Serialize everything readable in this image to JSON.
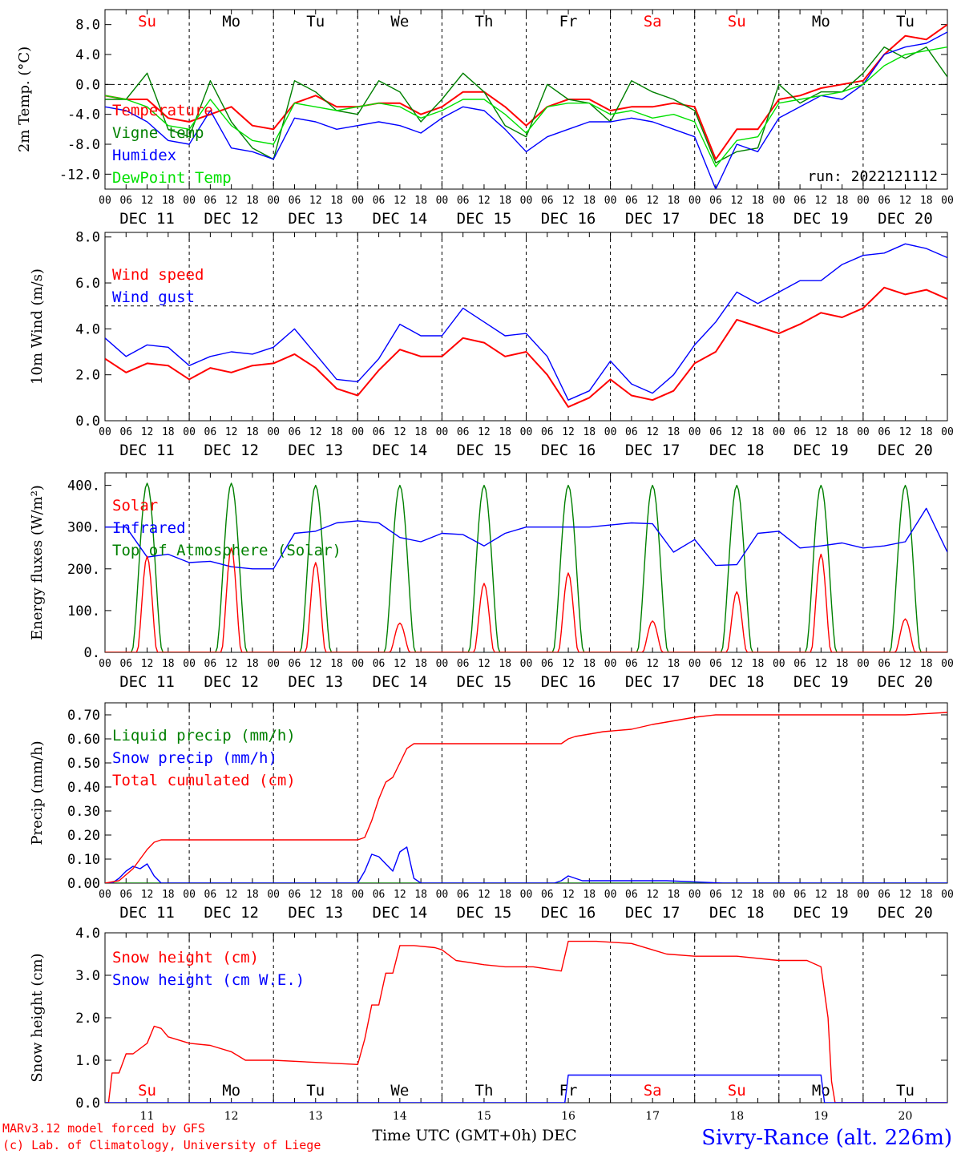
{
  "header": {
    "run": "run: 2022121112",
    "credit_model": "MARv3.12 model forced by GFS",
    "credit_lab": "(c) Lab. of Climatology, University of Liege",
    "station": "Sivry-Rance (alt. 226m)",
    "xaxis_title": "Time UTC (GMT+0h) DEC"
  },
  "axis": {
    "hour_ticks": [
      "00",
      "06",
      "12",
      "18"
    ],
    "date_labels": [
      "DEC 11",
      "DEC 12",
      "DEC 13",
      "DEC 14",
      "DEC 15",
      "DEC 16",
      "DEC 17",
      "DEC 18",
      "DEC 19",
      "DEC 20"
    ],
    "day_numbers": [
      "11",
      "12",
      "13",
      "14",
      "15",
      "16",
      "17",
      "18",
      "19",
      "20"
    ],
    "weekdays": [
      {
        "label": "Su",
        "color": "#ff0000"
      },
      {
        "label": "Mo",
        "color": "#000000"
      },
      {
        "label": "Tu",
        "color": "#000000"
      },
      {
        "label": "We",
        "color": "#000000"
      },
      {
        "label": "Th",
        "color": "#000000"
      },
      {
        "label": "Fr",
        "color": "#000000"
      },
      {
        "label": "Sa",
        "color": "#ff0000"
      },
      {
        "label": "Su",
        "color": "#ff0000"
      },
      {
        "label": "Mo",
        "color": "#000000"
      },
      {
        "label": "Tu",
        "color": "#000000"
      }
    ]
  },
  "colors": {
    "red": "#ff0000",
    "dark_green": "#008000",
    "blue": "#0000ff",
    "light_green": "#00e000"
  },
  "chart_data": [
    {
      "type": "line",
      "ylabel": "2m Temp. (°C)",
      "ylim": [
        -14,
        10
      ],
      "yticks": [
        "8.0",
        "4.0",
        "0.0",
        "-4.0",
        "-8.0",
        "-12.0"
      ],
      "ytick_values": [
        8,
        4,
        0,
        -4,
        -8,
        -12
      ],
      "ref_line": 0,
      "series": [
        {
          "name": "Temperature",
          "color": "#ff0000",
          "x": [
            0,
            6,
            12,
            18,
            24,
            30,
            36,
            42,
            48,
            54,
            60,
            66,
            72,
            78,
            84,
            90,
            96,
            102,
            108,
            114,
            120,
            126,
            132,
            138,
            144,
            150,
            156,
            162,
            168,
            174,
            180,
            186,
            192,
            198,
            204,
            210,
            216,
            222,
            228,
            234,
            240
          ],
          "values": [
            -1.5,
            -2,
            -2,
            -4.5,
            -5,
            -4,
            -3,
            -5.5,
            -6,
            -2.5,
            -1.5,
            -3,
            -3,
            -2.5,
            -2.5,
            -4,
            -3,
            -1,
            -1,
            -3,
            -5.5,
            -3,
            -2,
            -2,
            -3.5,
            -3,
            -3,
            -2.5,
            -3,
            -10,
            -6,
            -6,
            -2,
            -1.5,
            -0.5,
            0,
            0.5,
            4,
            6.5,
            6,
            8
          ]
        },
        {
          "name": "Vigne temp",
          "color": "#008000",
          "x": [
            0,
            6,
            12,
            18,
            24,
            30,
            36,
            42,
            48,
            54,
            60,
            66,
            72,
            78,
            84,
            90,
            96,
            102,
            108,
            114,
            120,
            126,
            132,
            138,
            144,
            150,
            156,
            162,
            168,
            174,
            180,
            186,
            192,
            198,
            204,
            210,
            216,
            222,
            228,
            234,
            240
          ],
          "values": [
            -2,
            -2,
            1.5,
            -6,
            -7,
            0.5,
            -5,
            -8.5,
            -10,
            0.5,
            -1,
            -3.5,
            -4,
            0.5,
            -1,
            -5,
            -2,
            1.5,
            -1,
            -5.5,
            -7,
            0,
            -2,
            -2.5,
            -5,
            0.5,
            -1,
            -2,
            -3.5,
            -10.5,
            -9,
            -8.5,
            0,
            -2.5,
            -1,
            -1,
            1.5,
            5,
            3.5,
            5,
            1
          ]
        },
        {
          "name": "Humidex",
          "color": "#0000ff",
          "x": [
            0,
            6,
            12,
            18,
            24,
            30,
            36,
            42,
            48,
            54,
            60,
            66,
            72,
            78,
            84,
            90,
            96,
            102,
            108,
            114,
            120,
            126,
            132,
            138,
            144,
            150,
            156,
            162,
            168,
            174,
            180,
            186,
            192,
            198,
            204,
            210,
            216,
            222,
            228,
            234,
            240
          ],
          "values": [
            -3,
            -3.5,
            -5,
            -7.5,
            -8,
            -3.5,
            -8.5,
            -9,
            -10,
            -4.5,
            -5,
            -6,
            -5.5,
            -5,
            -5.5,
            -6.5,
            -4.5,
            -3,
            -3.5,
            -6,
            -9,
            -7,
            -6,
            -5,
            -5,
            -4.5,
            -5,
            -6,
            -7,
            -14,
            -8,
            -9,
            -4.5,
            -3,
            -1.5,
            -2,
            0,
            4,
            5,
            5.5,
            7
          ]
        },
        {
          "name": "DewPoint Temp",
          "color": "#00e000",
          "x": [
            0,
            6,
            12,
            18,
            24,
            30,
            36,
            42,
            48,
            54,
            60,
            66,
            72,
            78,
            84,
            90,
            96,
            102,
            108,
            114,
            120,
            126,
            132,
            138,
            144,
            150,
            156,
            162,
            168,
            174,
            180,
            186,
            192,
            198,
            204,
            210,
            216,
            222,
            228,
            234,
            240
          ],
          "values": [
            -1.5,
            -2,
            -3,
            -5.5,
            -6,
            -2,
            -5.5,
            -7.5,
            -8,
            -2.5,
            -3,
            -3.5,
            -3,
            -2.5,
            -3,
            -4.5,
            -3.5,
            -2,
            -2,
            -4,
            -6.5,
            -3,
            -2.5,
            -2.5,
            -4,
            -3.5,
            -4.5,
            -4,
            -5,
            -11,
            -7.5,
            -7,
            -2.5,
            -2,
            -1.5,
            -1,
            0,
            2.5,
            4,
            4.5,
            5
          ]
        }
      ]
    },
    {
      "type": "line",
      "ylabel": "10m Wind (m/s)",
      "ylim": [
        0,
        8.2
      ],
      "yticks": [
        "8.0",
        "6.0",
        "4.0",
        "2.0",
        "0.0"
      ],
      "ytick_values": [
        8,
        6,
        4,
        2,
        0
      ],
      "ref_line": 5,
      "series": [
        {
          "name": "Wind speed",
          "color": "#ff0000",
          "x": [
            0,
            6,
            12,
            18,
            24,
            30,
            36,
            42,
            48,
            54,
            60,
            66,
            72,
            78,
            84,
            90,
            96,
            102,
            108,
            114,
            120,
            126,
            132,
            138,
            144,
            150,
            156,
            162,
            168,
            174,
            180,
            186,
            192,
            198,
            204,
            210,
            216,
            222,
            228,
            234,
            240
          ],
          "values": [
            2.7,
            2.1,
            2.5,
            2.4,
            1.8,
            2.3,
            2.1,
            2.4,
            2.5,
            2.9,
            2.3,
            1.4,
            1.1,
            2.2,
            3.1,
            2.8,
            2.8,
            3.6,
            3.4,
            2.8,
            3.0,
            2.0,
            0.6,
            1.0,
            1.8,
            1.1,
            0.9,
            1.3,
            2.5,
            3.0,
            4.4,
            4.1,
            3.8,
            4.2,
            4.7,
            4.5,
            4.9,
            5.8,
            5.5,
            5.7,
            5.3
          ]
        },
        {
          "name": "Wind gust",
          "color": "#0000ff",
          "x": [
            0,
            6,
            12,
            18,
            24,
            30,
            36,
            42,
            48,
            54,
            60,
            66,
            72,
            78,
            84,
            90,
            96,
            102,
            108,
            114,
            120,
            126,
            132,
            138,
            144,
            150,
            156,
            162,
            168,
            174,
            180,
            186,
            192,
            198,
            204,
            210,
            216,
            222,
            228,
            234,
            240
          ],
          "values": [
            3.6,
            2.8,
            3.3,
            3.2,
            2.4,
            2.8,
            3.0,
            2.9,
            3.2,
            4.0,
            2.9,
            1.8,
            1.7,
            2.7,
            4.2,
            3.7,
            3.7,
            4.9,
            4.3,
            3.7,
            3.8,
            2.8,
            0.9,
            1.3,
            2.6,
            1.6,
            1.2,
            2.0,
            3.3,
            4.3,
            5.6,
            5.1,
            5.6,
            6.1,
            6.1,
            6.8,
            7.2,
            7.3,
            7.7,
            7.5,
            7.1
          ]
        }
      ]
    },
    {
      "type": "line",
      "ylabel": "Energy fluxes (W/m²)",
      "ylim": [
        0,
        430
      ],
      "yticks": [
        "400.",
        "300.",
        "200.",
        "100.",
        "0."
      ],
      "ytick_values": [
        400,
        300,
        200,
        100,
        0
      ],
      "series": [
        {
          "name": "Solar",
          "color": "#ff0000",
          "diurnal_peaks": [
            230,
            250,
            215,
            70,
            165,
            190,
            75,
            145,
            235,
            80
          ]
        },
        {
          "name": "Infrared",
          "color": "#0000ff",
          "x": [
            0,
            6,
            12,
            18,
            24,
            30,
            36,
            42,
            48,
            54,
            60,
            66,
            72,
            78,
            84,
            90,
            96,
            102,
            108,
            114,
            120,
            126,
            132,
            138,
            144,
            150,
            156,
            162,
            168,
            174,
            180,
            186,
            192,
            198,
            204,
            210,
            216,
            222,
            228,
            234,
            240
          ],
          "values": [
            300,
            300,
            228,
            235,
            215,
            218,
            205,
            200,
            200,
            285,
            290,
            310,
            315,
            310,
            275,
            265,
            285,
            282,
            255,
            285,
            300,
            300,
            300,
            300,
            305,
            310,
            308,
            240,
            270,
            208,
            210,
            285,
            290,
            250,
            255,
            262,
            250,
            255,
            265,
            345,
            240
          ]
        },
        {
          "name": "Top of Atmosphere (Solar)",
          "color": "#008000",
          "diurnal_peaks": [
            405,
            405,
            400,
            400,
            400,
            400,
            400,
            400,
            400,
            400
          ]
        }
      ]
    },
    {
      "type": "line",
      "ylabel": "Precip (mm/h)",
      "ylim": [
        0,
        0.75
      ],
      "yticks": [
        "0.70",
        "0.60",
        "0.50",
        "0.40",
        "0.30",
        "0.20",
        "0.10",
        "0.00"
      ],
      "ytick_values": [
        0.7,
        0.6,
        0.5,
        0.4,
        0.3,
        0.2,
        0.1,
        0
      ],
      "series": [
        {
          "name": "Liquid precip (mm/h)",
          "color": "#008000",
          "x": [
            0,
            240
          ],
          "values": [
            0,
            0
          ]
        },
        {
          "name": "Snow precip (mm/h)",
          "color": "#0000ff",
          "x": [
            0,
            2,
            4,
            6,
            8,
            10,
            12,
            14,
            16,
            60,
            72,
            74,
            76,
            78,
            80,
            82,
            84,
            86,
            88,
            90,
            92,
            120,
            128,
            130,
            132,
            134,
            136,
            140,
            148,
            160,
            176,
            180,
            240
          ],
          "values": [
            0,
            0,
            0.02,
            0.05,
            0.07,
            0.06,
            0.08,
            0.03,
            0,
            0,
            0,
            0.05,
            0.12,
            0.11,
            0.08,
            0.05,
            0.13,
            0.15,
            0.02,
            0,
            0,
            0,
            0,
            0.01,
            0.03,
            0.02,
            0.01,
            0.01,
            0.01,
            0.01,
            0,
            0,
            0
          ]
        },
        {
          "name": "Total cumulated (cm)",
          "color": "#ff0000",
          "x": [
            0,
            4,
            8,
            12,
            14,
            16,
            18,
            72,
            74,
            76,
            78,
            80,
            82,
            84,
            86,
            88,
            90,
            92,
            108,
            130,
            132,
            134,
            138,
            142,
            150,
            156,
            160,
            168,
            174,
            180,
            216,
            228,
            240
          ],
          "values": [
            0,
            0.01,
            0.06,
            0.14,
            0.17,
            0.18,
            0.18,
            0.18,
            0.19,
            0.26,
            0.35,
            0.42,
            0.44,
            0.5,
            0.56,
            0.58,
            0.58,
            0.58,
            0.58,
            0.58,
            0.6,
            0.61,
            0.62,
            0.63,
            0.64,
            0.66,
            0.67,
            0.69,
            0.7,
            0.7,
            0.7,
            0.7,
            0.71
          ]
        }
      ]
    },
    {
      "type": "line",
      "ylabel": "Snow height (cm)",
      "ylim": [
        0,
        4
      ],
      "yticks": [
        "4.0",
        "3.0",
        "2.0",
        "1.0",
        "0.0"
      ],
      "ytick_values": [
        4,
        3,
        2,
        1,
        0
      ],
      "series": [
        {
          "name": "Snow height (cm)",
          "color": "#ff0000",
          "x": [
            0,
            1,
            2,
            4,
            6,
            8,
            12,
            14,
            16,
            18,
            24,
            30,
            36,
            40,
            48,
            60,
            72,
            74,
            76,
            78,
            80,
            82,
            84,
            86,
            88,
            94,
            96,
            100,
            108,
            114,
            122,
            130,
            132,
            140,
            150,
            156,
            160,
            168,
            180,
            192,
            200,
            204,
            206,
            207,
            208,
            240
          ],
          "values": [
            0,
            0,
            0.7,
            0.7,
            1.15,
            1.15,
            1.4,
            1.8,
            1.75,
            1.55,
            1.4,
            1.35,
            1.2,
            1.0,
            1.0,
            0.95,
            0.9,
            1.5,
            2.3,
            2.3,
            3.05,
            3.05,
            3.7,
            3.7,
            3.7,
            3.65,
            3.6,
            3.35,
            3.25,
            3.2,
            3.2,
            3.1,
            3.8,
            3.8,
            3.75,
            3.6,
            3.5,
            3.45,
            3.45,
            3.35,
            3.35,
            3.2,
            2.0,
            0.5,
            0,
            0
          ]
        },
        {
          "name": "Snow height (cm W.E.)",
          "color": "#0000ff",
          "x": [
            0,
            131,
            132,
            204,
            205,
            240
          ],
          "values": [
            0,
            0,
            0.65,
            0.65,
            0,
            0
          ]
        }
      ]
    }
  ]
}
